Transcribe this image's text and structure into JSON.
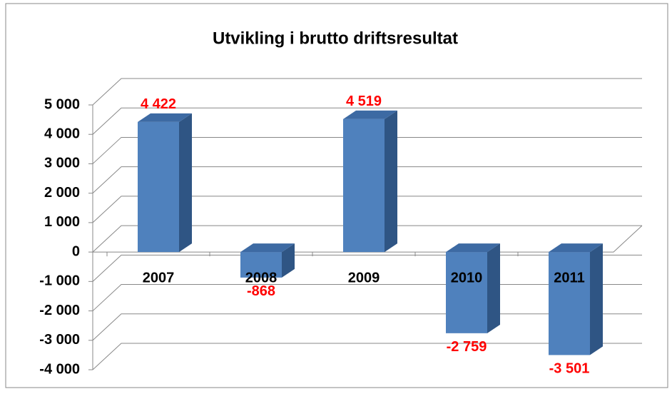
{
  "chart_data": {
    "type": "bar3d",
    "title": "Utvikling i brutto driftsresultat",
    "categories": [
      "2007",
      "2008",
      "2009",
      "2010",
      "2011"
    ],
    "values": [
      4422,
      -868,
      4519,
      -2759,
      -3501
    ],
    "value_labels": [
      "4 422",
      "-868",
      "4 519",
      "-2 759",
      "-3 501"
    ],
    "color": "#4f81bd",
    "label_color": "#ff0000",
    "ylim": [
      -4000,
      5000
    ],
    "yticks": [
      {
        "value": -4000,
        "label": "-4 000"
      },
      {
        "value": -3000,
        "label": "-3 000"
      },
      {
        "value": -2000,
        "label": "-2 000"
      },
      {
        "value": -1000,
        "label": "-1 000"
      },
      0,
      {
        "value": 1000,
        "label": "1 000"
      },
      {
        "value": 2000,
        "label": "2 000"
      },
      {
        "value": 3000,
        "label": "3 000"
      },
      {
        "value": 4000,
        "label": "4 000"
      },
      {
        "value": 5000,
        "label": "5 000"
      }
    ],
    "grid": true
  }
}
